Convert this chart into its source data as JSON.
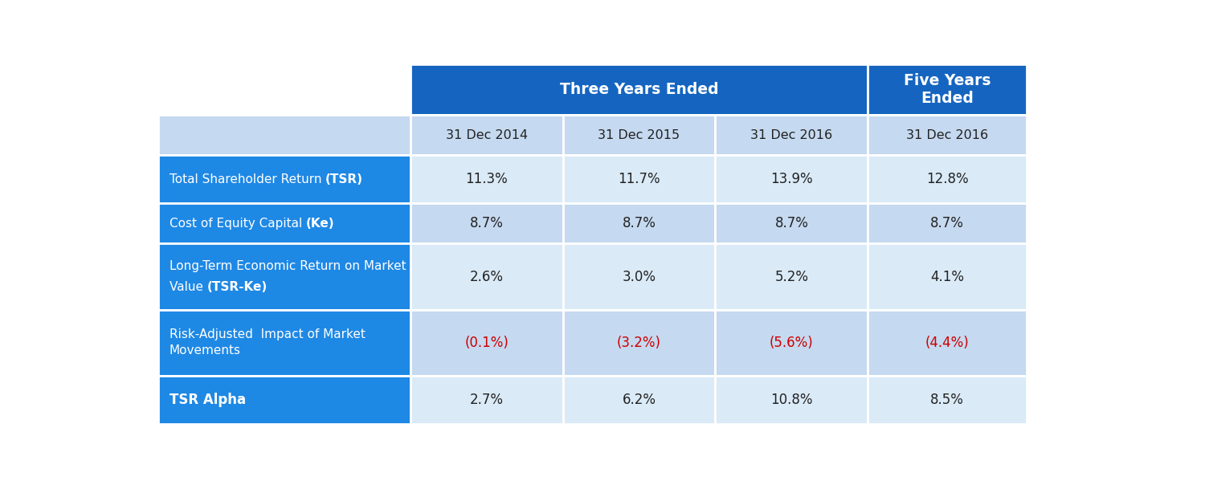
{
  "header_group1": "Three Years Ended",
  "header_group2": "Five Years\nEnded",
  "col_headers": [
    "31 Dec 2014",
    "31 Dec 2015",
    "31 Dec 2016",
    "31 Dec 2016"
  ],
  "row_labels": [
    "Total Shareholder Return (TSR)",
    "Cost of Equity Capital (Ke)",
    "Long-Term Economic Return on Market\nValue (TSR-Ke)",
    "Risk-Adjusted  Impact of Market\nMovements",
    "TSR Alpha"
  ],
  "row_bold_words": [
    "TSR",
    "Ke",
    "TSR-Ke",
    "",
    "TSR Alpha"
  ],
  "values": [
    [
      "11.3%",
      "11.7%",
      "13.9%",
      "12.8%"
    ],
    [
      "8.7%",
      "8.7%",
      "8.7%",
      "8.7%"
    ],
    [
      "2.6%",
      "3.0%",
      "5.2%",
      "4.1%"
    ],
    [
      "(0.1%)",
      "(3.2%)",
      "(5.6%)",
      "(4.4%)"
    ],
    [
      "2.7%",
      "6.2%",
      "10.8%",
      "8.5%"
    ]
  ],
  "value_colors": [
    [
      "#222222",
      "#222222",
      "#222222",
      "#222222"
    ],
    [
      "#222222",
      "#222222",
      "#222222",
      "#222222"
    ],
    [
      "#222222",
      "#222222",
      "#222222",
      "#222222"
    ],
    [
      "#cc0000",
      "#cc0000",
      "#cc0000",
      "#cc0000"
    ],
    [
      "#222222",
      "#222222",
      "#222222",
      "#222222"
    ]
  ],
  "dark_blue": "#1565C0",
  "label_blue": "#1E88E5",
  "light_blue_hdr": "#C5D9F0",
  "light_blue_data1": "#C5D9F0",
  "light_blue_data2": "#DAEAF7",
  "white": "#FFFFFF",
  "figsize": [
    15.0,
    6.09
  ],
  "dpi": 100
}
